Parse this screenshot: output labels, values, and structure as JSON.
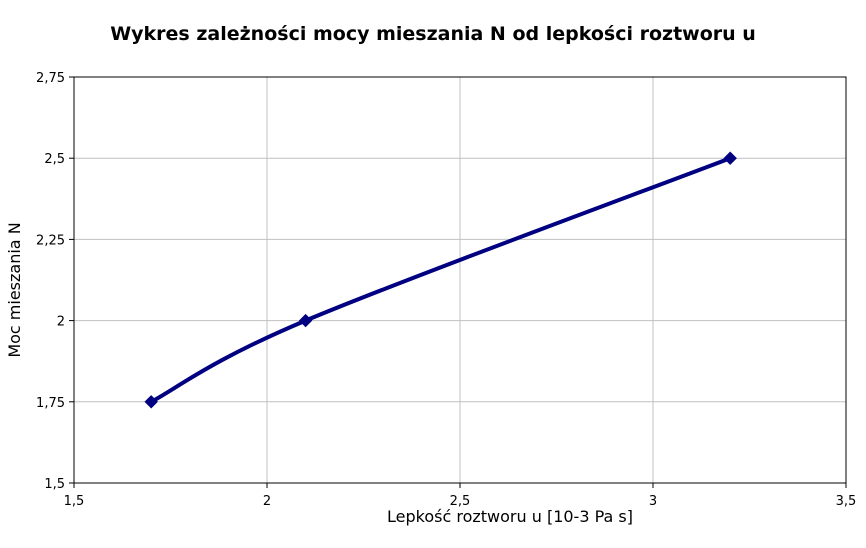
{
  "chart_data": {
    "type": "line",
    "title": "Wykres zależności mocy mieszania N od lepkości roztworu u",
    "xlabel": "Lepkość roztworu u [10-3 Pa  s]",
    "ylabel": "Moc mieszania N",
    "xlim": [
      1.5,
      3.5
    ],
    "ylim": [
      1.5,
      2.75
    ],
    "x_ticks": [
      "1,5",
      "2",
      "2,5",
      "3",
      "3,5"
    ],
    "y_ticks": [
      "1,5",
      "1,75",
      "2",
      "2,25",
      "2,5",
      "2,75"
    ],
    "grid": true,
    "legend": "none",
    "series": [
      {
        "x": [
          1.7,
          2.1,
          3.2
        ],
        "values": [
          1.75,
          2.0,
          2.5
        ],
        "color": "#000080",
        "marker": "diamond",
        "smooth": true
      }
    ]
  }
}
